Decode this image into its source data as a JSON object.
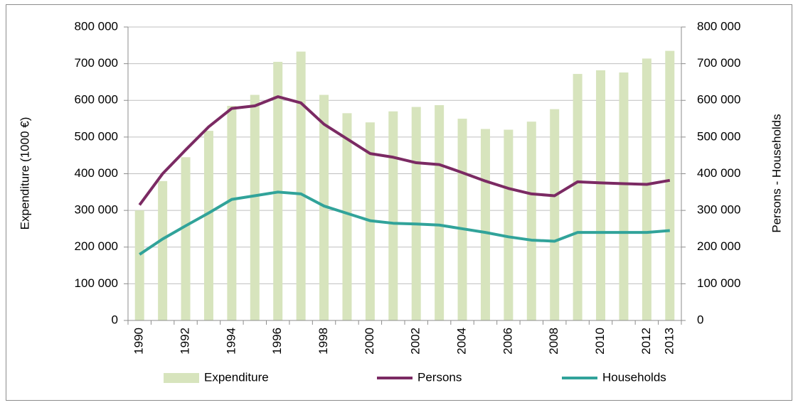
{
  "chart_data": {
    "type": "bar",
    "y_label": "Expenditure (1000 €)",
    "y2_label": "Persons - Households",
    "categories": [
      "1990",
      null,
      "1992",
      null,
      "1994",
      null,
      "1996",
      null,
      "1998",
      null,
      "2000",
      null,
      "2002",
      null,
      "2004",
      null,
      "2006",
      null,
      "2008",
      null,
      "2010",
      null,
      "2012",
      "2013"
    ],
    "series": [
      {
        "name": "Expenditure",
        "type": "bar",
        "color": "#d7e4bd",
        "values": [
          300000,
          380000,
          445000,
          517000,
          585000,
          615000,
          705000,
          733000,
          615000,
          565000,
          540000,
          570000,
          582000,
          587000,
          550000,
          522000,
          520000,
          542000,
          576000,
          672000,
          682000,
          676000,
          714000,
          735000
        ]
      },
      {
        "name": "Persons",
        "type": "line",
        "axis": "y2",
        "color": "#7b2a63",
        "values": [
          315000,
          400000,
          465000,
          528000,
          578000,
          585000,
          610000,
          593000,
          535000,
          495000,
          455000,
          445000,
          430000,
          425000,
          403000,
          380000,
          360000,
          345000,
          340000,
          378000,
          375000,
          373000,
          371000,
          382000
        ]
      },
      {
        "name": "Households",
        "type": "line",
        "axis": "y2",
        "color": "#31a39a",
        "values": [
          180000,
          222000,
          258000,
          293000,
          330000,
          340000,
          350000,
          345000,
          312000,
          292000,
          272000,
          265000,
          263000,
          260000,
          250000,
          240000,
          228000,
          219000,
          216000,
          240000,
          240000,
          240000,
          240000,
          245000
        ]
      }
    ],
    "ylim": [
      0,
      800000
    ],
    "yticks": [
      0,
      {
        "value": 100000,
        "label": "100 000"
      },
      {
        "value": 200000,
        "label": "200 000"
      },
      {
        "value": 300000,
        "label": "300 000"
      },
      {
        "value": 400000,
        "label": "400 000"
      },
      {
        "value": 500000,
        "label": "500 000"
      },
      {
        "value": 600000,
        "label": "600 000"
      },
      {
        "value": 700000,
        "label": "700 000"
      },
      {
        "value": 800000,
        "label": "800 000"
      }
    ],
    "y2lim": [
      0,
      800000
    ],
    "y2ticks": [
      0,
      {
        "value": 100000,
        "label": "100 000"
      },
      {
        "value": 200000,
        "label": "200 000"
      },
      {
        "value": 300000,
        "label": "300 000"
      },
      {
        "value": 400000,
        "label": "400 000"
      },
      {
        "value": 500000,
        "label": "500 000"
      },
      {
        "value": 600000,
        "label": "600 000"
      },
      {
        "value": 700000,
        "label": "700 000"
      },
      {
        "value": 800000,
        "label": "800 000"
      }
    ],
    "grid": true,
    "legend": "bottom"
  }
}
